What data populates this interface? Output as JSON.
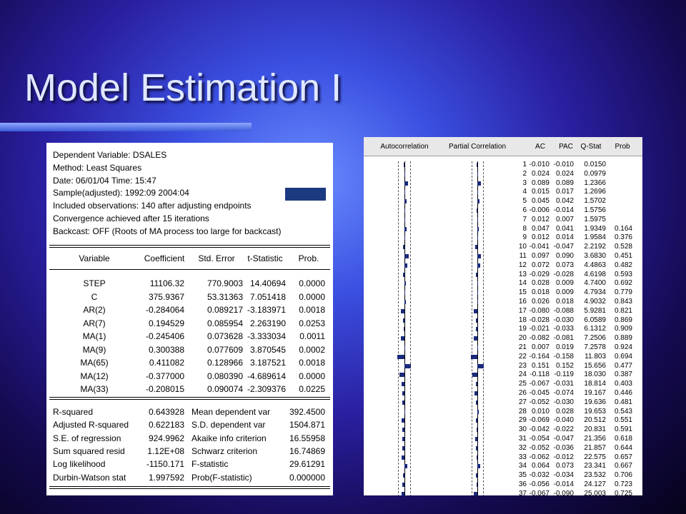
{
  "title": "Model Estimation I",
  "regression": {
    "header": [
      "Dependent Variable: DSALES",
      "Method: Least Squares",
      "Date: 06/01/04   Time: 15:47",
      "Sample(adjusted): 1992:09 2004:04",
      "Included observations: 140 after adjusting endpoints",
      "Convergence achieved after 15 iterations",
      "Backcast: OFF (Roots of MA process too large for backcast)"
    ],
    "columns": [
      "Variable",
      "Coefficient",
      "Std. Error",
      "t-Statistic",
      "Prob."
    ],
    "rows": [
      [
        "STEP",
        "11106.32",
        "770.9003",
        "14.40694",
        "0.0000"
      ],
      [
        "C",
        "375.9367",
        "53.31363",
        "7.051418",
        "0.0000"
      ],
      [
        "AR(2)",
        "-0.284064",
        "0.089217",
        "-3.183971",
        "0.0018"
      ],
      [
        "AR(7)",
        "0.194529",
        "0.085954",
        "2.263190",
        "0.0253"
      ],
      [
        "MA(1)",
        "-0.245406",
        "0.073628",
        "-3.333034",
        "0.0011"
      ],
      [
        "MA(9)",
        "0.300388",
        "0.077609",
        "3.870545",
        "0.0002"
      ],
      [
        "MA(65)",
        "0.411082",
        "0.128966",
        "3.187521",
        "0.0018"
      ],
      [
        "MA(12)",
        "-0.377000",
        "0.080390",
        "-4.689614",
        "0.0000"
      ],
      [
        "MA(33)",
        "-0.208015",
        "0.090074",
        "-2.309376",
        "0.0225"
      ]
    ],
    "stats": [
      [
        "R-squared",
        "0.643928",
        "Mean dependent var",
        "392.4500"
      ],
      [
        "Adjusted R-squared",
        "0.622183",
        "S.D. dependent var",
        "1504.871"
      ],
      [
        "S.E. of regression",
        "924.9962",
        "Akaike info criterion",
        "16.55958"
      ],
      [
        "Sum squared resid",
        "1.12E+08",
        "Schwarz criterion",
        "16.74869"
      ],
      [
        "Log likelihood",
        "-1150.171",
        "F-statistic",
        "29.61291"
      ],
      [
        "Durbin-Watson stat",
        "1.997592",
        "Prob(F-statistic)",
        "0.000000"
      ]
    ]
  },
  "correlogram": {
    "columns": [
      "Autocorrelation",
      "Partial Correlation",
      "AC",
      "PAC",
      "Q-Stat",
      "Prob"
    ],
    "rows": [
      [
        "1",
        "-0.010",
        "-0.010",
        "0.0150",
        null
      ],
      [
        "2",
        "0.024",
        "0.024",
        "0.0979",
        null
      ],
      [
        "3",
        "0.089",
        "0.089",
        "1.2366",
        null
      ],
      [
        "4",
        "0.015",
        "0.017",
        "1.2696",
        null
      ],
      [
        "5",
        "0.045",
        "0.042",
        "1.5702",
        null
      ],
      [
        "6",
        "-0.006",
        "-0.014",
        "1.5756",
        null
      ],
      [
        "7",
        "0.012",
        "0.007",
        "1.5975",
        null
      ],
      [
        "8",
        "0.047",
        "0.041",
        "1.9349",
        "0.164"
      ],
      [
        "9",
        "0.012",
        "0.014",
        "1.9584",
        "0.376"
      ],
      [
        "10",
        "-0.041",
        "-0.047",
        "2.2192",
        "0.528"
      ],
      [
        "11",
        "0.097",
        "0.090",
        "3.6830",
        "0.451"
      ],
      [
        "12",
        "0.072",
        "0.073",
        "4.4863",
        "0.482"
      ],
      [
        "13",
        "-0.029",
        "-0.028",
        "4.6198",
        "0.593"
      ],
      [
        "14",
        "0.028",
        "0.009",
        "4.7400",
        "0.692"
      ],
      [
        "15",
        "0.018",
        "0.009",
        "4.7934",
        "0.779"
      ],
      [
        "16",
        "0.026",
        "0.018",
        "4.9032",
        "0.843"
      ],
      [
        "17",
        "-0.080",
        "-0.088",
        "5.9281",
        "0.821"
      ],
      [
        "18",
        "-0.028",
        "-0.030",
        "6.0589",
        "0.869"
      ],
      [
        "19",
        "-0.021",
        "-0.033",
        "6.1312",
        "0.909"
      ],
      [
        "20",
        "-0.082",
        "-0.081",
        "7.2506",
        "0.889"
      ],
      [
        "21",
        "0.007",
        "0.019",
        "7.2578",
        "0.924"
      ],
      [
        "22",
        "-0.164",
        "-0.158",
        "11.803",
        "0.694"
      ],
      [
        "23",
        "0.151",
        "0.152",
        "15.656",
        "0.477"
      ],
      [
        "24",
        "-0.118",
        "-0.119",
        "18.030",
        "0.387"
      ],
      [
        "25",
        "-0.067",
        "-0.031",
        "18.814",
        "0.403"
      ],
      [
        "26",
        "-0.045",
        "-0.074",
        "19.167",
        "0.446"
      ],
      [
        "27",
        "-0.052",
        "-0.030",
        "19.636",
        "0.481"
      ],
      [
        "28",
        "0.010",
        "0.028",
        "19.653",
        "0.543"
      ],
      [
        "29",
        "-0.069",
        "-0.040",
        "20.512",
        "0.551"
      ],
      [
        "30",
        "-0.042",
        "-0.022",
        "20.831",
        "0.591"
      ],
      [
        "31",
        "-0.054",
        "-0.047",
        "21.356",
        "0.618"
      ],
      [
        "32",
        "-0.052",
        "-0.036",
        "21.857",
        "0.644"
      ],
      [
        "33",
        "-0.062",
        "-0.012",
        "22.575",
        "0.657"
      ],
      [
        "34",
        "0.064",
        "0.073",
        "23.341",
        "0.667"
      ],
      [
        "35",
        "-0.032",
        "-0.034",
        "23.532",
        "0.706"
      ],
      [
        "36",
        "-0.056",
        "-0.014",
        "24.127",
        "0.723"
      ],
      [
        "37",
        "-0.067",
        "-0.090",
        "25.003",
        "0.725"
      ]
    ]
  }
}
